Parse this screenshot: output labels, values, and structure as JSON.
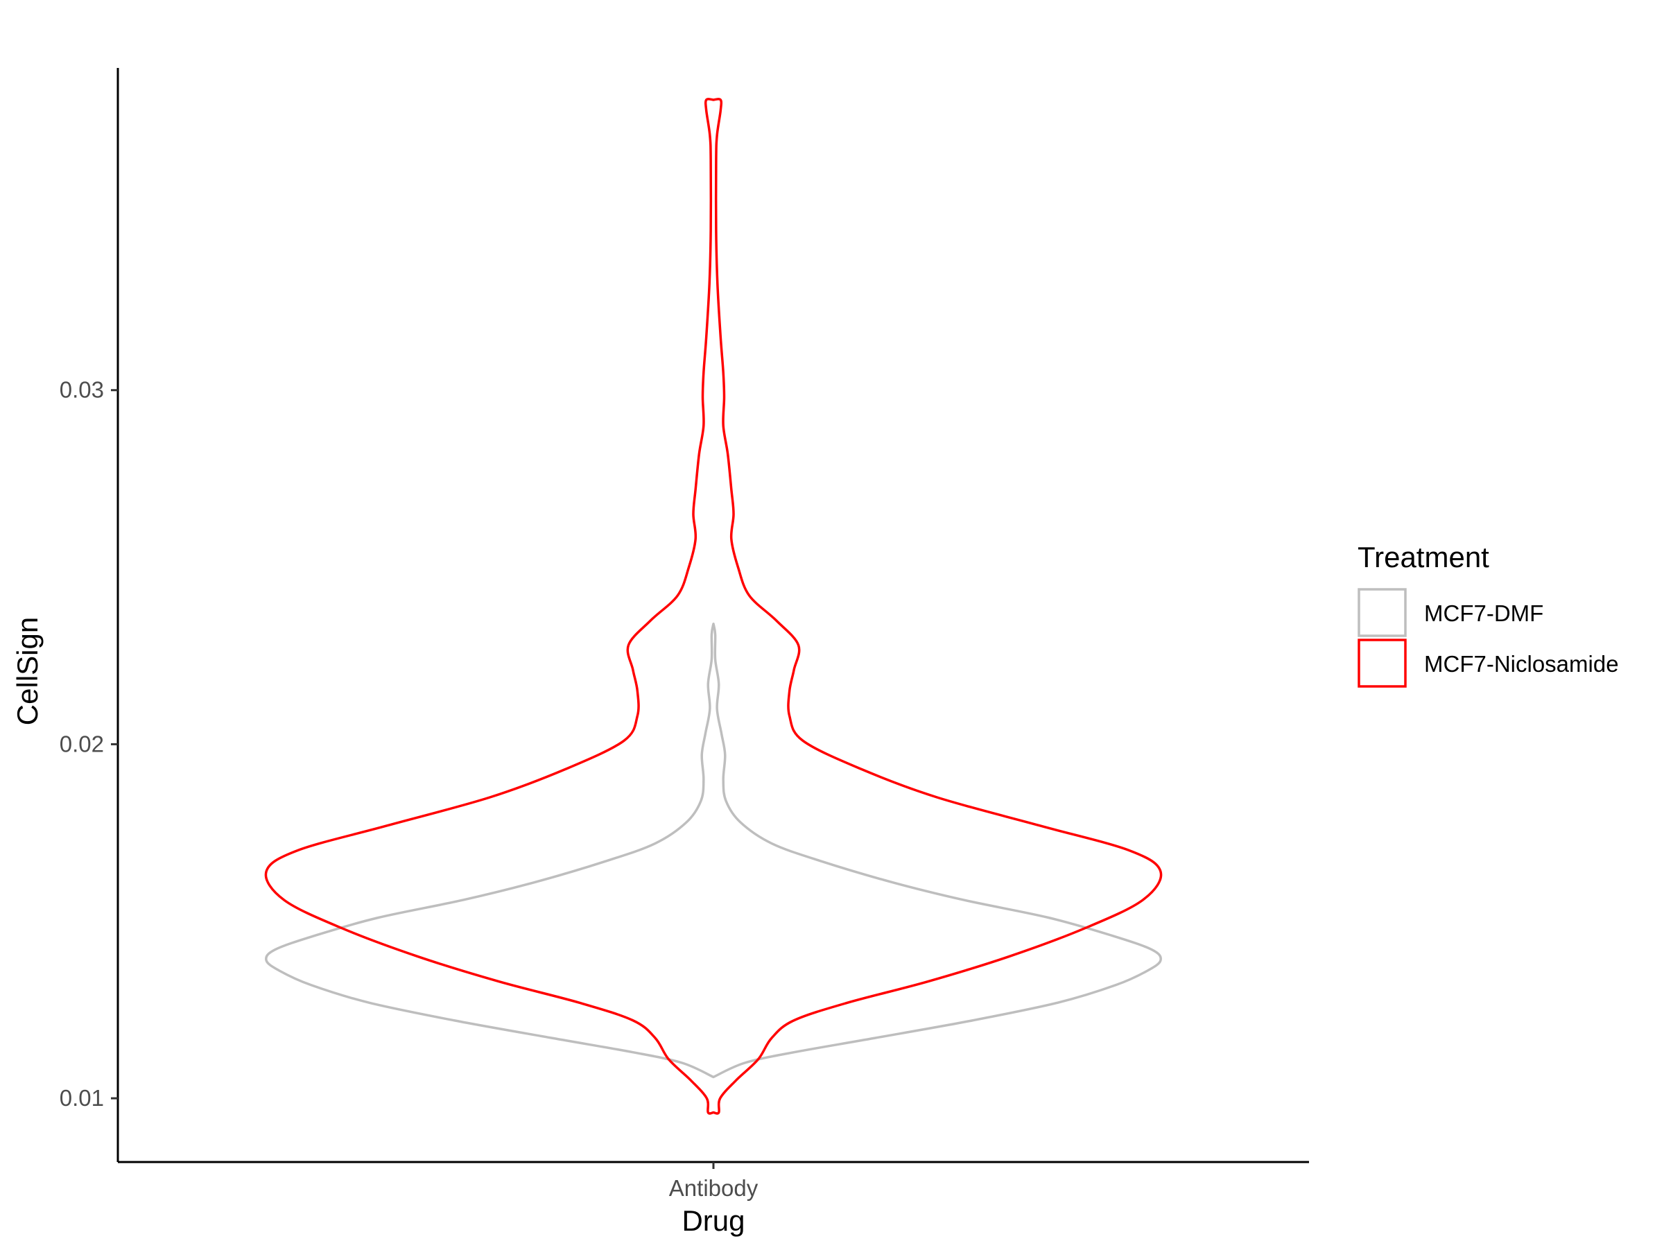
{
  "chart_data": {
    "type": "violin",
    "xlabel": "Drug",
    "ylabel": "CellSign",
    "categories": [
      "Antibody"
    ],
    "ylim": [
      0.0082,
      0.0391
    ],
    "yticks": [
      {
        "value": 0.01,
        "label": "0.01"
      },
      {
        "value": 0.02,
        "label": "0.02"
      },
      {
        "value": 0.03,
        "label": "0.03"
      }
    ],
    "grid": false,
    "legend": {
      "title": "Treatment",
      "placement": "right",
      "entries": [
        "MCF7-DMF",
        "MCF7-Niclosamide"
      ]
    },
    "series": [
      {
        "name": "MCF7-DMF",
        "category": "Antibody",
        "color": "#BEBEBE",
        "profile": [
          {
            "y": 0.0106,
            "w": 0.0
          },
          {
            "y": 0.011,
            "w": 0.07
          },
          {
            "y": 0.0113,
            "w": 0.18
          },
          {
            "y": 0.0117,
            "w": 0.36
          },
          {
            "y": 0.0122,
            "w": 0.58
          },
          {
            "y": 0.0127,
            "w": 0.77
          },
          {
            "y": 0.0132,
            "w": 0.9
          },
          {
            "y": 0.0136,
            "w": 0.97
          },
          {
            "y": 0.0139,
            "w": 1.0
          },
          {
            "y": 0.0142,
            "w": 0.98
          },
          {
            "y": 0.0146,
            "w": 0.89
          },
          {
            "y": 0.0151,
            "w": 0.75
          },
          {
            "y": 0.0156,
            "w": 0.56
          },
          {
            "y": 0.0161,
            "w": 0.4
          },
          {
            "y": 0.0167,
            "w": 0.24
          },
          {
            "y": 0.0172,
            "w": 0.13
          },
          {
            "y": 0.0178,
            "w": 0.06
          },
          {
            "y": 0.0184,
            "w": 0.028
          },
          {
            "y": 0.019,
            "w": 0.022
          },
          {
            "y": 0.0197,
            "w": 0.026
          },
          {
            "y": 0.0203,
            "w": 0.018
          },
          {
            "y": 0.021,
            "w": 0.008
          },
          {
            "y": 0.0217,
            "w": 0.012
          },
          {
            "y": 0.0224,
            "w": 0.004
          },
          {
            "y": 0.0231,
            "w": 0.004
          },
          {
            "y": 0.0234,
            "w": 0.0
          }
        ]
      },
      {
        "name": "MCF7-Niclosamide",
        "category": "Antibody",
        "color": "#FF0000",
        "profile": [
          {
            "y": 0.0096,
            "w": 0.0
          },
          {
            "y": 0.0096,
            "w": 0.012
          },
          {
            "y": 0.01,
            "w": 0.015
          },
          {
            "y": 0.0105,
            "w": 0.05
          },
          {
            "y": 0.0111,
            "w": 0.1
          },
          {
            "y": 0.0117,
            "w": 0.13
          },
          {
            "y": 0.0122,
            "w": 0.18
          },
          {
            "y": 0.0127,
            "w": 0.3
          },
          {
            "y": 0.0133,
            "w": 0.48
          },
          {
            "y": 0.014,
            "w": 0.66
          },
          {
            "y": 0.0148,
            "w": 0.83
          },
          {
            "y": 0.0156,
            "w": 0.96
          },
          {
            "y": 0.0164,
            "w": 1.0
          },
          {
            "y": 0.017,
            "w": 0.93
          },
          {
            "y": 0.0177,
            "w": 0.73
          },
          {
            "y": 0.0185,
            "w": 0.5
          },
          {
            "y": 0.0193,
            "w": 0.33
          },
          {
            "y": 0.0201,
            "w": 0.2
          },
          {
            "y": 0.0208,
            "w": 0.17
          },
          {
            "y": 0.0215,
            "w": 0.17
          },
          {
            "y": 0.0221,
            "w": 0.18
          },
          {
            "y": 0.0228,
            "w": 0.19
          },
          {
            "y": 0.0235,
            "w": 0.14
          },
          {
            "y": 0.0242,
            "w": 0.08
          },
          {
            "y": 0.025,
            "w": 0.055
          },
          {
            "y": 0.0258,
            "w": 0.04
          },
          {
            "y": 0.0265,
            "w": 0.045
          },
          {
            "y": 0.0272,
            "w": 0.04
          },
          {
            "y": 0.0282,
            "w": 0.032
          },
          {
            "y": 0.029,
            "w": 0.022
          },
          {
            "y": 0.0298,
            "w": 0.024
          },
          {
            "y": 0.0305,
            "w": 0.022
          },
          {
            "y": 0.0315,
            "w": 0.016
          },
          {
            "y": 0.033,
            "w": 0.009
          },
          {
            "y": 0.0345,
            "w": 0.006
          },
          {
            "y": 0.0365,
            "w": 0.006
          },
          {
            "y": 0.0372,
            "w": 0.008
          },
          {
            "y": 0.0379,
            "w": 0.016
          },
          {
            "y": 0.0382,
            "w": 0.016
          },
          {
            "y": 0.0382,
            "w": 0.0
          }
        ]
      }
    ]
  }
}
